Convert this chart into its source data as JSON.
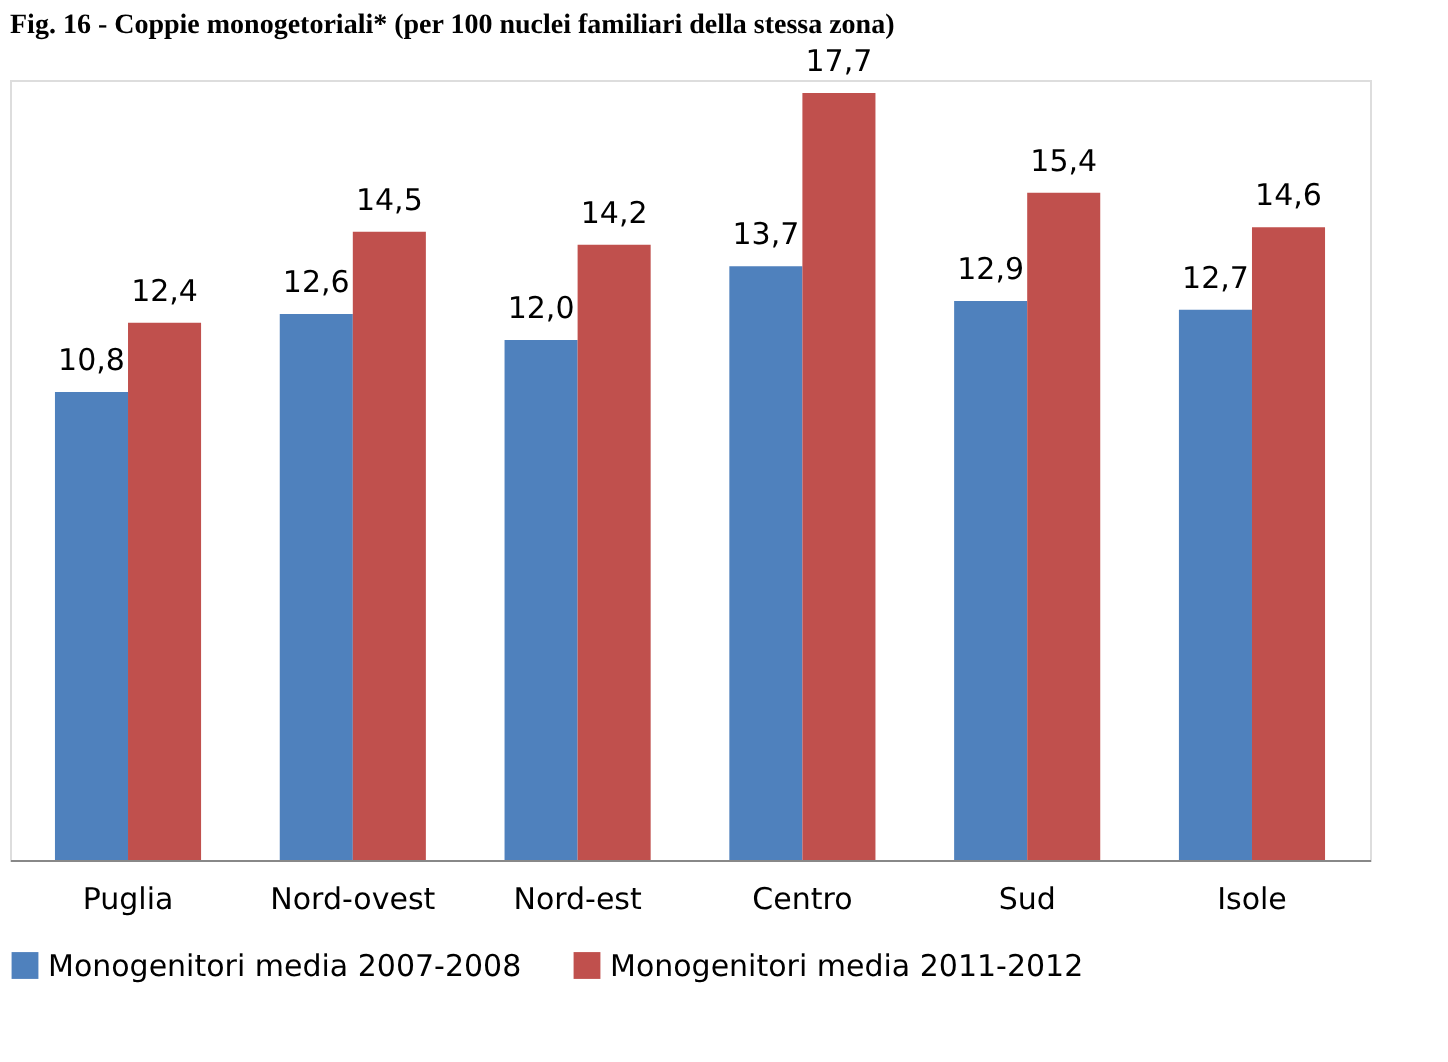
{
  "chart_data": {
    "type": "bar",
    "title": "Fig. 16 - Coppie monogetoriali* (per 100 nuclei familiari della stessa zona)",
    "categories": [
      "Puglia",
      "Nord-ovest",
      "Nord-est",
      "Centro",
      "Sud",
      "Isole"
    ],
    "series": [
      {
        "name": "Monogenitori media 2007-2008",
        "color": "#4f81bd",
        "values": [
          10.8,
          12.6,
          12.0,
          13.7,
          12.9,
          12.7
        ],
        "value_labels": [
          "10,8",
          "12,6",
          "12,0",
          "13,7",
          "12,9",
          "12,7"
        ]
      },
      {
        "name": "Monogenitori media 2011-2012",
        "color": "#c0504d",
        "values": [
          12.4,
          14.5,
          14.2,
          17.7,
          15.4,
          14.6
        ],
        "value_labels": [
          "12,4",
          "14,5",
          "14,2",
          "17,7",
          "15,4",
          "14,6"
        ]
      }
    ],
    "tick_labels": "x",
    "legend": "bottom",
    "grid": false
  }
}
